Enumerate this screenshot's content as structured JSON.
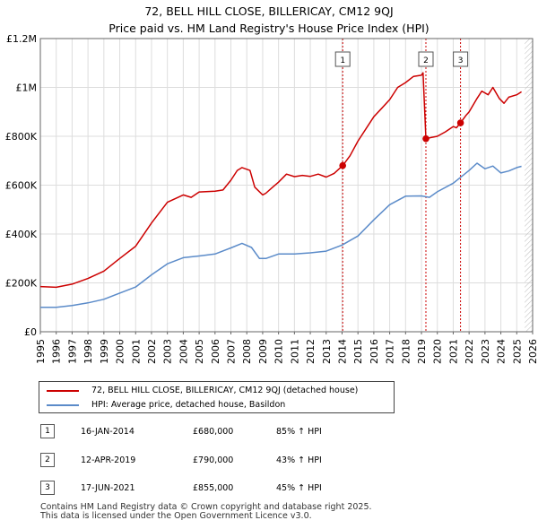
{
  "title_line1": "72, BELL HILL CLOSE, BILLERICAY, CM12 9QJ",
  "title_line2": "Price paid vs. HM Land Registry's House Price Index (HPI)",
  "legend": {
    "property": "72, BELL HILL CLOSE, BILLERICAY, CM12 9QJ (detached house)",
    "hpi": "HPI: Average price, detached house, Basildon"
  },
  "transactions": [
    {
      "id": "1",
      "date": "16-JAN-2014",
      "price": "£680,000",
      "hpi": "85% ↑ HPI"
    },
    {
      "id": "2",
      "date": "12-APR-2019",
      "price": "£790,000",
      "hpi": "43% ↑ HPI"
    },
    {
      "id": "3",
      "date": "17-JUN-2021",
      "price": "£855,000",
      "hpi": "45% ↑ HPI"
    }
  ],
  "footer_line1": "Contains HM Land Registry data © Crown copyright and database right 2025.",
  "footer_line2": "This data is licensed under the Open Government Licence v3.0.",
  "colors": {
    "property": "#cc0000",
    "hpi": "#5b8bc9",
    "grid": "#dddddd",
    "marker_line": "#cc0000",
    "future_hatch": "#bbbbbb"
  },
  "chart_data": {
    "type": "line",
    "title": "72, BELL HILL CLOSE, BILLERICAY, CM12 9QJ — Price paid vs. HM Land Registry's House Price Index (HPI)",
    "xlabel": "",
    "ylabel": "",
    "xlim": [
      1995,
      2026
    ],
    "ylim": [
      0,
      1200000
    ],
    "grid": true,
    "legend_position": "below",
    "y_ticks": [
      {
        "value": 0,
        "label": "£0"
      },
      {
        "value": 200000,
        "label": "£200K"
      },
      {
        "value": 400000,
        "label": "£400K"
      },
      {
        "value": 600000,
        "label": "£600K"
      },
      {
        "value": 800000,
        "label": "£800K"
      },
      {
        "value": 1000000,
        "label": "£1M"
      },
      {
        "value": 1200000,
        "label": "£1.2M"
      }
    ],
    "x_ticks": [
      "1995",
      "1996",
      "1997",
      "1998",
      "1999",
      "2000",
      "2001",
      "2002",
      "2003",
      "2004",
      "2005",
      "2006",
      "2007",
      "2008",
      "2009",
      "2010",
      "2011",
      "2012",
      "2013",
      "2014",
      "2015",
      "2016",
      "2017",
      "2018",
      "2019",
      "2020",
      "2021",
      "2022",
      "2023",
      "2024",
      "2025",
      "2026"
    ],
    "future_start": 2025.5,
    "sales": [
      {
        "label": "1",
        "x": 2014.04,
        "value": 680000
      },
      {
        "label": "2",
        "x": 2019.28,
        "value": 790000
      },
      {
        "label": "3",
        "x": 2021.46,
        "value": 855000
      }
    ],
    "series": [
      {
        "name": "72, BELL HILL CLOSE, BILLERICAY, CM12 9QJ (detached house)",
        "x": [
          1995.0,
          1996.0,
          1997.0,
          1998.0,
          1999.0,
          2000.0,
          2001.0,
          2002.0,
          2003.0,
          2004.0,
          2004.5,
          2005.0,
          2006.0,
          2006.5,
          2007.0,
          2007.4,
          2007.7,
          2008.2,
          2008.5,
          2009.0,
          2009.2,
          2009.6,
          2010.0,
          2010.5,
          2011.0,
          2011.5,
          2012.0,
          2012.5,
          2013.0,
          2013.5,
          2014.04,
          2014.5,
          2015.0,
          2016.0,
          2016.5,
          2017.0,
          2017.5,
          2018.0,
          2018.5,
          2019.0,
          2019.1,
          2019.28,
          2019.6,
          2020.0,
          2020.5,
          2021.0,
          2021.2,
          2021.46,
          2021.8,
          2022.0,
          2022.5,
          2022.8,
          2023.2,
          2023.5,
          2023.9,
          2024.2,
          2024.5,
          2025.0,
          2025.3
        ],
        "values": [
          185000,
          182000,
          195000,
          218000,
          248000,
          300000,
          350000,
          445000,
          530000,
          560000,
          550000,
          572000,
          575000,
          580000,
          620000,
          660000,
          672000,
          660000,
          592000,
          560000,
          567000,
          590000,
          612000,
          645000,
          635000,
          640000,
          636000,
          645000,
          633000,
          648000,
          680000,
          720000,
          780000,
          880000,
          915000,
          950000,
          1000000,
          1020000,
          1045000,
          1050000,
          1060000,
          790000,
          795000,
          800000,
          818000,
          840000,
          835000,
          855000,
          885000,
          900000,
          955000,
          985000,
          970000,
          1000000,
          955000,
          935000,
          960000,
          970000,
          982000
        ]
      },
      {
        "name": "HPI: Average price, detached house, Basildon",
        "x": [
          1995.0,
          1996.0,
          1997.0,
          1998.0,
          1999.0,
          2000.0,
          2001.0,
          2002.0,
          2003.0,
          2004.0,
          2005.0,
          2006.0,
          2007.0,
          2007.7,
          2008.3,
          2008.8,
          2009.2,
          2010.0,
          2011.0,
          2012.0,
          2013.0,
          2014.0,
          2015.0,
          2016.0,
          2017.0,
          2018.0,
          2019.0,
          2019.5,
          2020.0,
          2021.0,
          2022.0,
          2022.5,
          2023.0,
          2023.5,
          2024.0,
          2024.5,
          2025.0,
          2025.3
        ],
        "values": [
          100000,
          100000,
          107000,
          118000,
          133000,
          158000,
          183000,
          233000,
          278000,
          303000,
          310000,
          318000,
          343000,
          362000,
          345000,
          300000,
          300000,
          318000,
          318000,
          323000,
          330000,
          355000,
          392000,
          458000,
          520000,
          555000,
          556000,
          550000,
          573000,
          608000,
          660000,
          690000,
          667000,
          678000,
          650000,
          658000,
          672000,
          677000
        ]
      }
    ]
  }
}
